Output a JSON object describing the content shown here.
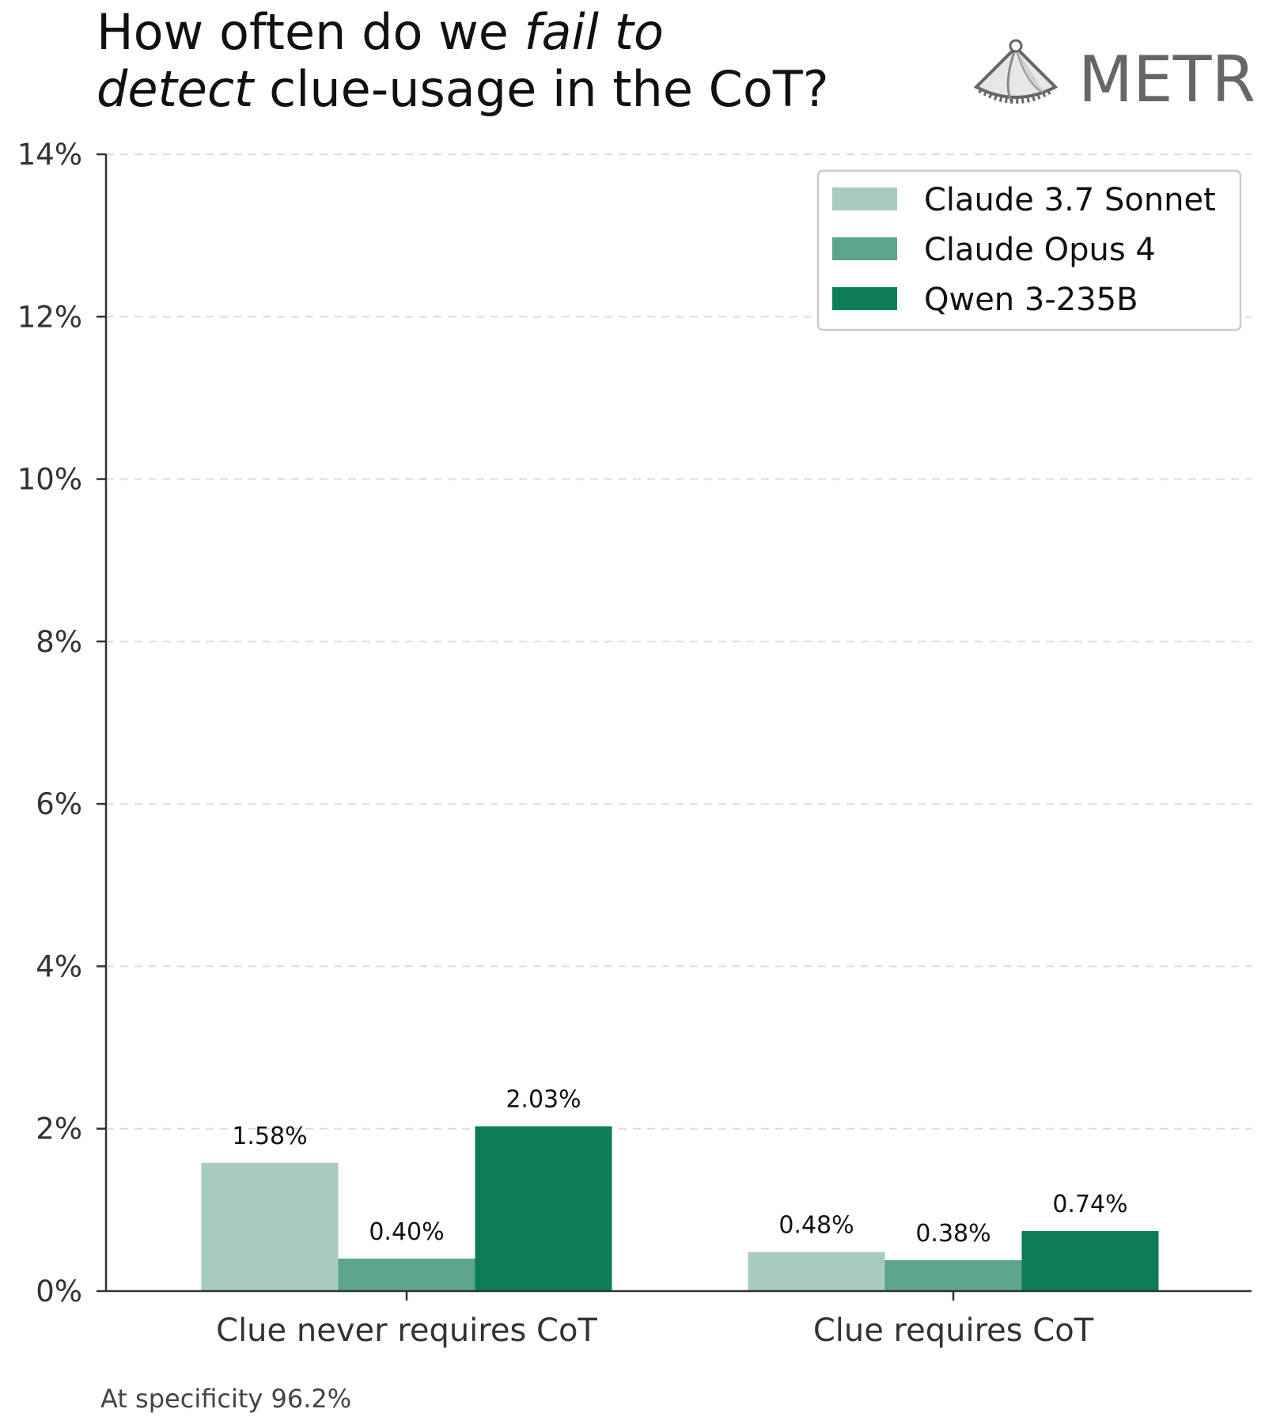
{
  "chart_data": {
    "type": "bar",
    "title_parts": [
      {
        "text": "How often do we ",
        "italic": false,
        "line": 1
      },
      {
        "text": "fail to",
        "italic": true,
        "line": 1
      },
      {
        "text": "detect",
        "italic": true,
        "line": 2
      },
      {
        "text": " clue-usage in the CoT?",
        "italic": false,
        "line": 2
      }
    ],
    "categories": [
      "Clue never requires CoT",
      "Clue requires CoT"
    ],
    "series": [
      {
        "name": "Claude 3.7 Sonnet",
        "color": "#a7cbbe",
        "values": [
          1.58,
          0.48
        ],
        "labels": [
          "1.58%",
          "0.48%"
        ]
      },
      {
        "name": "Claude Opus 4",
        "color": "#5ca48a",
        "values": [
          0.4,
          0.38
        ],
        "labels": [
          "0.40%",
          "0.38%"
        ]
      },
      {
        "name": "Qwen 3-235B",
        "color": "#0d7d57",
        "values": [
          2.03,
          0.74
        ],
        "labels": [
          "2.03%",
          "0.74%"
        ]
      }
    ],
    "ylim": [
      0,
      14
    ],
    "yticks": [
      0,
      2,
      4,
      6,
      8,
      10,
      12,
      14
    ],
    "ytick_labels": [
      "0%",
      "2%",
      "4%",
      "6%",
      "8%",
      "10%",
      "12%",
      "14%"
    ],
    "grid": "horizontal dashed",
    "legend_position": "top-right",
    "xlabel": "",
    "ylabel": "",
    "footnote": "At specificity 96.2%",
    "logo_text": "METR"
  }
}
